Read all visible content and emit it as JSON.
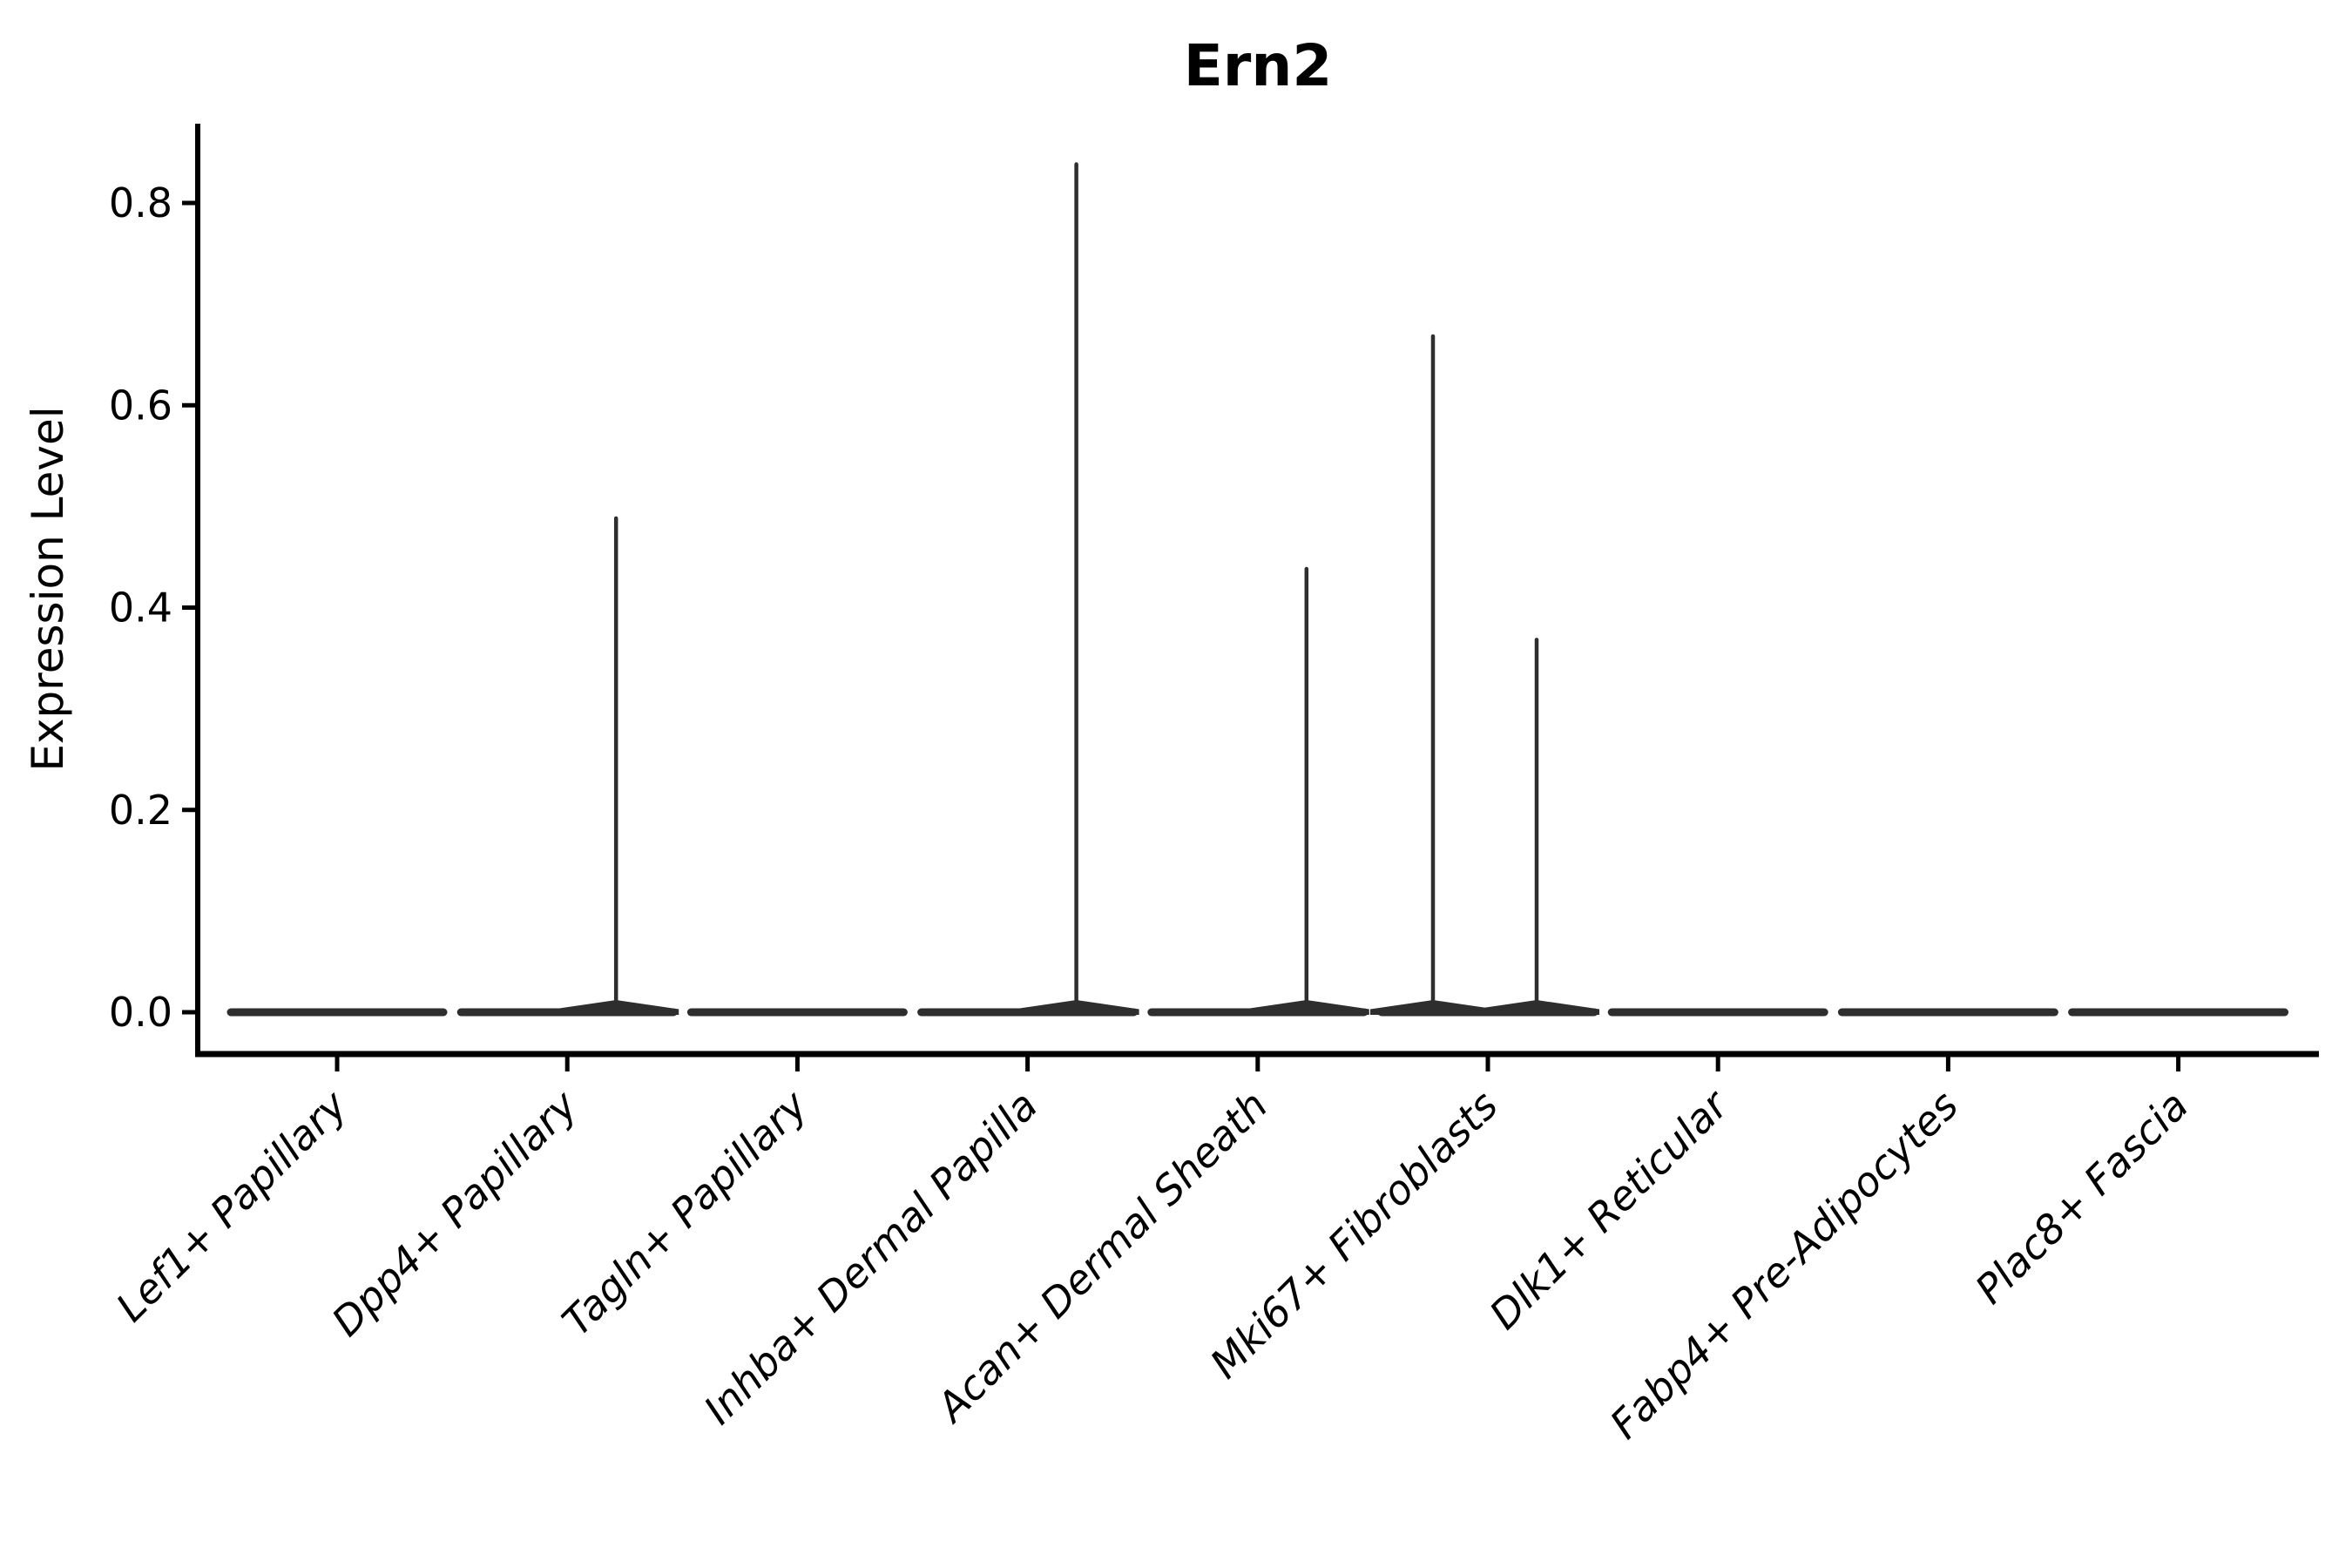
{
  "background": "#ffffff",
  "title": {
    "text": "Ern2"
  },
  "y_axis": {
    "label": "Expression Level",
    "tick_labels": [
      "0.0",
      "0.2",
      "0.4",
      "0.6",
      "0.8"
    ]
  },
  "x_axis": {
    "categories": [
      "Lef1+ Papillary",
      "Dpp4+ Papillary",
      "Tagln+ Papillary",
      "Inhba+ Dermal Papilla",
      "Acan+ Dermal Sheath",
      "Mki67+ Fibroblasts",
      "Dlk1+ Reticular",
      "Fabp4+ Pre-Adipocytes",
      "Plac8+ Fascia"
    ]
  },
  "chart_data": {
    "type": "violin",
    "title": "Ern2",
    "xlabel": "",
    "ylabel": "Expression Level",
    "categories": [
      "Lef1+ Papillary",
      "Dpp4+ Papillary",
      "Tagln+ Papillary",
      "Inhba+ Dermal Papilla",
      "Acan+ Dermal Sheath",
      "Mki67+ Fibroblasts",
      "Dlk1+ Reticular",
      "Fabp4+ Pre-Adipocytes",
      "Plac8+ Fascia"
    ],
    "y_ticks": [
      0.0,
      0.2,
      0.4,
      0.6,
      0.8
    ],
    "y_tick_labels": [
      "0.0",
      "0.2",
      "0.4",
      "0.6",
      "0.8"
    ],
    "ylim": [
      -0.04,
      0.88
    ],
    "grid": false,
    "legend": "none",
    "description": "All violins are flat bars at expression 0; thin density spikes mark maximum expression in a few populations",
    "violins": [
      {
        "category": "Lef1+ Papillary",
        "body_at_zero": true,
        "spikes": []
      },
      {
        "category": "Dpp4+ Papillary",
        "body_at_zero": true,
        "spikes": [
          {
            "side": "right",
            "max": 0.49
          }
        ]
      },
      {
        "category": "Tagln+ Papillary",
        "body_at_zero": true,
        "spikes": []
      },
      {
        "category": "Inhba+ Dermal Papilla",
        "body_at_zero": true,
        "spikes": [
          {
            "side": "right",
            "max": 0.84
          }
        ]
      },
      {
        "category": "Acan+ Dermal Sheath",
        "body_at_zero": true,
        "spikes": [
          {
            "side": "right",
            "max": 0.44
          }
        ]
      },
      {
        "category": "Mki67+ Fibroblasts",
        "body_at_zero": true,
        "spikes": [
          {
            "side": "left",
            "max": 0.67
          },
          {
            "side": "right",
            "max": 0.37
          }
        ]
      },
      {
        "category": "Dlk1+ Reticular",
        "body_at_zero": true,
        "spikes": []
      },
      {
        "category": "Fabp4+ Pre-Adipocytes",
        "body_at_zero": true,
        "spikes": []
      },
      {
        "category": "Plac8+ Fascia",
        "body_at_zero": true,
        "spikes": []
      }
    ],
    "colors": {
      "violin": "#2e2e2e",
      "axis": "#000000",
      "text": "#000000",
      "background": "#ffffff"
    }
  }
}
